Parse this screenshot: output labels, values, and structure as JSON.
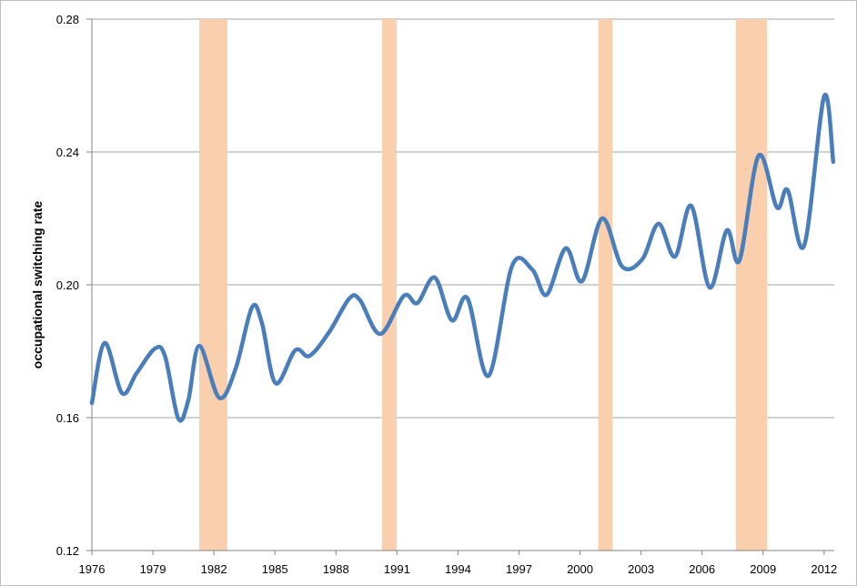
{
  "chart_data": {
    "type": "line",
    "y_label": "occupational switching rate",
    "x": [
      1976.0,
      1976.63,
      1977.48,
      1978.2,
      1979.1,
      1979.6,
      1980.25,
      1980.74,
      1981.28,
      1982.26,
      1983.07,
      1983.87,
      1984.36,
      1985.03,
      1986.0,
      1986.7,
      1987.67,
      1988.66,
      1989.19,
      1990.18,
      1991.34,
      1992.0,
      1992.86,
      1993.7,
      1994.47,
      1995.5,
      1996.66,
      1997.65,
      1998.36,
      1999.3,
      2000.1,
      2001.09,
      2002.07,
      2003.06,
      2003.86,
      2004.67,
      2005.47,
      2006.37,
      2007.22,
      2007.84,
      2008.78,
      2009.68,
      2010.21,
      2011.02,
      2012.0,
      2012.45
    ],
    "series": [
      {
        "name": "occupational switching rate",
        "color": "#4a7ebb",
        "values": [
          0.1644,
          0.1825,
          0.1674,
          0.1734,
          0.1808,
          0.1784,
          0.1597,
          0.1652,
          0.1816,
          0.166,
          0.1748,
          0.1932,
          0.1885,
          0.1704,
          0.1803,
          0.1786,
          0.1858,
          0.1959,
          0.1953,
          0.1852,
          0.1967,
          0.1945,
          0.2022,
          0.1893,
          0.1959,
          0.1726,
          0.2057,
          0.2046,
          0.197,
          0.211,
          0.2011,
          0.22,
          0.2055,
          0.2077,
          0.2184,
          0.2085,
          0.2238,
          0.1992,
          0.2164,
          0.2074,
          0.2389,
          0.2233,
          0.2285,
          0.2118,
          0.2567,
          0.237
        ]
      }
    ],
    "shaded_ranges": [
      [
        1981.28,
        1982.66
      ],
      [
        1990.27,
        1990.98
      ],
      [
        2000.9,
        2001.6
      ],
      [
        2007.66,
        2009.2
      ]
    ],
    "shade_color": "#f9cfae",
    "xlim": [
      1976,
      2012.5
    ],
    "xticks": [
      1976,
      1979,
      1982,
      1985,
      1988,
      1991,
      1994,
      1997,
      2000,
      2003,
      2006,
      2009,
      2012
    ],
    "ylim": [
      0.12,
      0.28
    ],
    "yticks": [
      0.12,
      0.16,
      {
        "value": 0.2,
        "label": "0.20"
      },
      0.24,
      0.28
    ],
    "grid": true
  }
}
